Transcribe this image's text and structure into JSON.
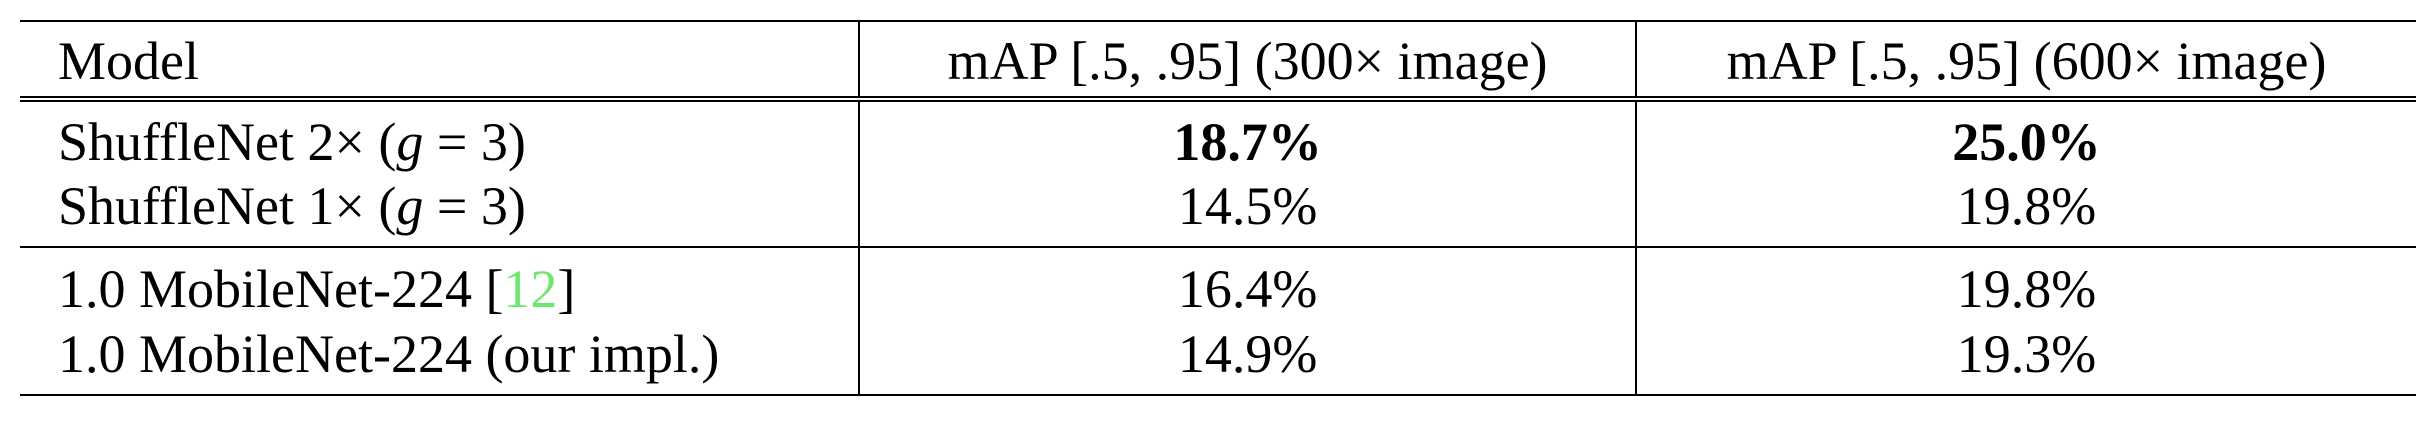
{
  "table": {
    "headers": {
      "model": "Model",
      "map_300": "mAP [.5, .95] (300× image)",
      "map_600": "mAP [.5, .95] (600× image)"
    },
    "rows": [
      {
        "model_prefix": "ShuffleNet 2× (",
        "model_var": "g",
        "model_suffix": " = 3)",
        "map_300": "18.7%",
        "map_600": "25.0%",
        "bold": true
      },
      {
        "model_prefix": "ShuffleNet 1× (",
        "model_var": "g",
        "model_suffix": " = 3)",
        "map_300": "14.5%",
        "map_600": "19.8%",
        "bold": false
      },
      {
        "model_prefix": "1.0 MobileNet-224 [",
        "model_cite": "12",
        "model_suffix": "]",
        "map_300": "16.4%",
        "map_600": "19.8%",
        "bold": false
      },
      {
        "model_prefix": "1.0 MobileNet-224 (our impl.)",
        "map_300": "14.9%",
        "map_600": "19.3%",
        "bold": false
      }
    ]
  }
}
